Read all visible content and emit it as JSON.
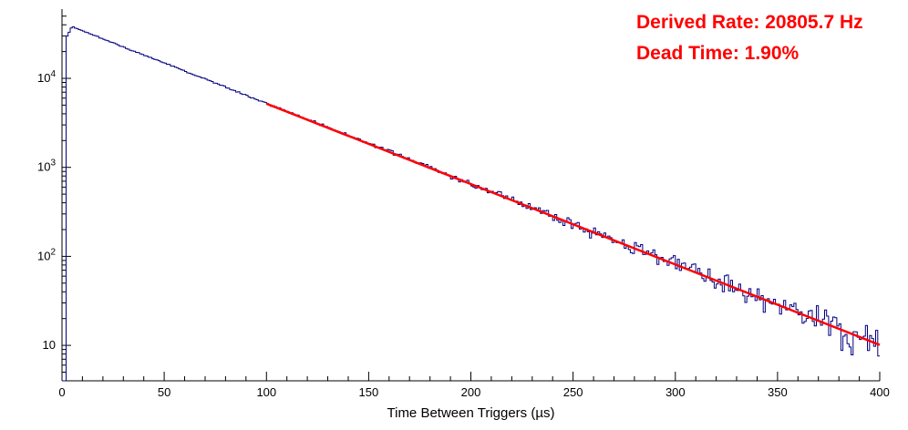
{
  "chart_data": {
    "type": "line",
    "subtype": "step-histogram-semilog-y",
    "title": "",
    "xlabel": "Time Between Triggers (µs)",
    "ylabel": "",
    "xlim": [
      0,
      400
    ],
    "ylim": [
      4,
      60000
    ],
    "y_scale": "log",
    "grid": false,
    "legend": "none",
    "x_ticks": [
      0,
      50,
      100,
      150,
      200,
      250,
      300,
      350,
      400
    ],
    "x_minor_step": 10,
    "y_ticks": [
      {
        "value": 10,
        "base": "10",
        "exp": ""
      },
      {
        "value": 100,
        "base": "10",
        "exp": "2"
      },
      {
        "value": 1000,
        "base": "10",
        "exp": "3"
      },
      {
        "value": 10000,
        "base": "10",
        "exp": "4"
      }
    ],
    "series": [
      {
        "name": "time-between-triggers-histogram",
        "color": "#000080",
        "style": "step-histogram",
        "bin_width_us": 1,
        "dead_time_cutoff_us": 2,
        "peak_x_us": 5,
        "peak_counts": 38000,
        "decay_constant_per_us": 0.0208057,
        "noise": "poisson",
        "seed": 20805,
        "sampled_points": [
          [
            5,
            38000
          ],
          [
            50,
            14900
          ],
          [
            100,
            5200
          ],
          [
            150,
            1860
          ],
          [
            200,
            655
          ],
          [
            250,
            232
          ],
          [
            300,
            82
          ],
          [
            350,
            29
          ],
          [
            400,
            10
          ]
        ]
      },
      {
        "name": "exponential-fit",
        "color": "#ff0000",
        "style": "line",
        "x_start": 100,
        "x_end": 400,
        "counts_at_start": 5200,
        "counts_at_end": 10.2,
        "decay_constant_per_us": 0.0208057
      }
    ],
    "annotations": [
      {
        "name": "derived-rate",
        "text": "Derived Rate: 20805.7 Hz",
        "color": "#ff0000"
      },
      {
        "name": "dead-time",
        "text": "Dead Time: 1.90%",
        "color": "#ff0000"
      }
    ]
  }
}
